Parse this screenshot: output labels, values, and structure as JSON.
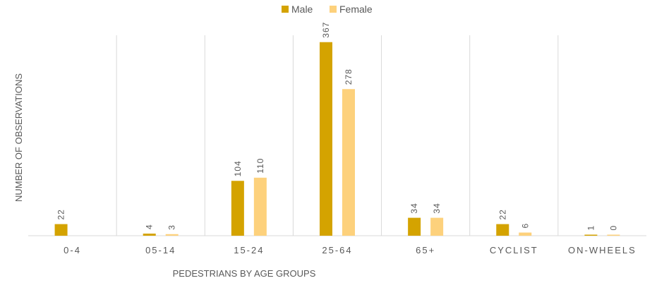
{
  "chart_data": {
    "type": "bar",
    "categories": [
      "0-4",
      "05-14",
      "15-24",
      "25-64",
      "65+",
      "CYCLIST",
      "ON-WHEELS"
    ],
    "series": [
      {
        "name": "Male",
        "color": "#d4a300",
        "values": [
          22,
          4,
          104,
          367,
          34,
          22,
          1
        ]
      },
      {
        "name": "Female",
        "color": "#fdd17c",
        "values": [
          null,
          3,
          110,
          278,
          34,
          6,
          0
        ]
      }
    ],
    "xlabel": "PEDESTRIANS BY AGE GROUPS",
    "ylabel": "NUMBER OF OBSERVATIONS",
    "ylim": [
      0,
      380
    ],
    "legend_position": "top-center",
    "grid": "vertical separators between categories"
  }
}
